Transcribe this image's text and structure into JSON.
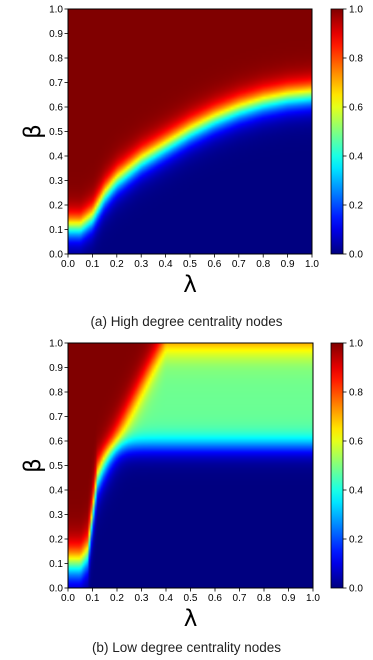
{
  "chart_data": [
    {
      "type": "heatmap",
      "caption": "(a) High degree centrality nodes",
      "xlabel": "λ",
      "ylabel": "β",
      "xlim": [
        0.0,
        1.0
      ],
      "ylim": [
        0.0,
        1.0
      ],
      "xticks": [
        "0.0",
        "0.1",
        "0.2",
        "0.3",
        "0.4",
        "0.5",
        "0.6",
        "0.7",
        "0.8",
        "0.9",
        "1.0"
      ],
      "yticks": [
        "0.0",
        "0.1",
        "0.2",
        "0.3",
        "0.4",
        "0.5",
        "0.6",
        "0.7",
        "0.8",
        "0.9",
        "1.0"
      ],
      "colorbar": {
        "min": 0.0,
        "max": 1.0,
        "ticks": [
          "0.0",
          "0.2",
          "0.4",
          "0.6",
          "0.8",
          "1.0"
        ],
        "colormap": "jet"
      },
      "boundary": {
        "x": [
          0.0,
          0.05,
          0.1,
          0.15,
          0.2,
          0.3,
          0.4,
          0.5,
          0.6,
          0.7,
          0.8,
          0.9,
          1.0
        ],
        "y": [
          0.11,
          0.11,
          0.15,
          0.24,
          0.3,
          0.38,
          0.44,
          0.5,
          0.55,
          0.59,
          0.62,
          0.64,
          0.65
        ]
      },
      "low_level": 0.0,
      "top_level": 1.0,
      "transition_width": 0.2
    },
    {
      "type": "heatmap",
      "caption": "(b) Low degree centrality nodes",
      "xlabel": "λ",
      "ylabel": "β",
      "xlim": [
        0.0,
        1.0
      ],
      "ylim": [
        0.0,
        1.0
      ],
      "xticks": [
        "0.0",
        "0.1",
        "0.2",
        "0.3",
        "0.4",
        "0.5",
        "0.6",
        "0.7",
        "0.8",
        "0.9",
        "1.0"
      ],
      "yticks": [
        "0.0",
        "0.1",
        "0.2",
        "0.3",
        "0.4",
        "0.5",
        "0.6",
        "0.7",
        "0.8",
        "0.9",
        "1.0"
      ],
      "colorbar": {
        "min": 0.0,
        "max": 1.0,
        "ticks": [
          "0.0",
          "0.2",
          "0.4",
          "0.6",
          "0.8",
          "1.0"
        ],
        "colormap": "jet"
      },
      "boundary": {
        "x": [
          0.0,
          0.05,
          0.08,
          0.1,
          0.12,
          0.15,
          0.2,
          0.25,
          0.3,
          0.35,
          0.4
        ],
        "y": [
          0.1,
          0.1,
          0.14,
          0.3,
          0.45,
          0.52,
          0.62,
          0.72,
          0.82,
          0.92,
          1.02
        ]
      },
      "low_level": 0.0,
      "top_level": 1.0,
      "plateau": {
        "level": 0.48,
        "base": 0.58,
        "width": 0.16,
        "at_y1": 0.52
      },
      "transition_width": 0.26
    }
  ]
}
